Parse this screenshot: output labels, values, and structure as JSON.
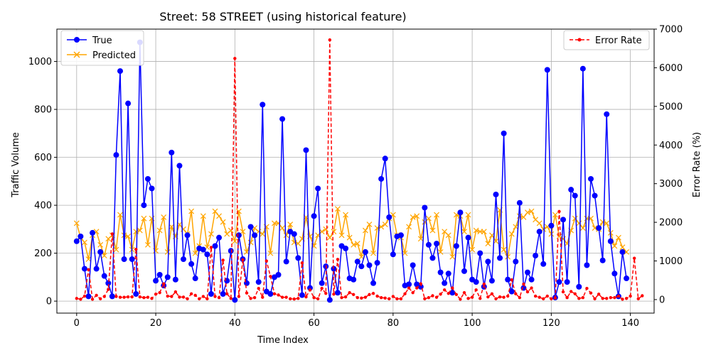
{
  "chart_data": {
    "type": "line",
    "title": "Street: 58 STREET (using historical feature)",
    "xlabel": "Time Index",
    "ylabel": "Traffic Volume",
    "y2label": "Error Rate (%)",
    "xlim": [
      -5,
      146
    ],
    "ylim": [
      -50,
      1135
    ],
    "y2lim": [
      -350,
      7000
    ],
    "xticks": [
      0,
      20,
      40,
      60,
      80,
      100,
      120,
      140
    ],
    "yticks": [
      0,
      200,
      400,
      600,
      800,
      1000
    ],
    "y2ticks": [
      0,
      1000,
      2000,
      3000,
      4000,
      5000,
      6000,
      7000
    ],
    "grid": true,
    "legend_left": "upper-left",
    "legend_right": "upper-right",
    "colors": {
      "true": "#0000ff",
      "predicted": "#ffa500",
      "error": "#ff0000"
    },
    "series": [
      {
        "name": "True",
        "axis": "left",
        "values": [
          250,
          270,
          135,
          20,
          285,
          135,
          205,
          105,
          75,
          20,
          610,
          960,
          175,
          825,
          175,
          30,
          1080,
          400,
          510,
          470,
          85,
          110,
          65,
          100,
          620,
          90,
          565,
          175,
          275,
          155,
          95,
          220,
          215,
          195,
          30,
          230,
          265,
          30,
          85,
          210,
          5,
          275,
          175,
          75,
          310,
          275,
          80,
          820,
          40,
          30,
          100,
          110,
          760,
          165,
          290,
          280,
          180,
          25,
          630,
          55,
          355,
          470,
          75,
          145,
          5,
          135,
          35,
          230,
          220,
          95,
          90,
          165,
          145,
          205,
          150,
          75,
          160,
          510,
          595,
          350,
          195,
          270,
          275,
          65,
          70,
          150,
          70,
          60,
          390,
          235,
          180,
          240,
          120,
          75,
          115,
          35,
          230,
          370,
          125,
          265,
          90,
          80,
          200,
          60,
          165,
          85,
          445,
          180,
          700,
          90,
          40,
          165,
          410,
          55,
          120,
          90,
          190,
          290,
          155,
          965,
          315,
          15,
          80,
          340,
          80,
          465,
          440,
          60,
          970,
          150,
          510,
          440,
          305,
          170,
          780,
          250,
          115,
          20,
          205,
          95
        ]
      },
      {
        "name": "Predicted",
        "axis": "left",
        "values": [
          325,
          265,
          245,
          175,
          275,
          290,
          235,
          190,
          260,
          275,
          215,
          360,
          275,
          270,
          215,
          290,
          295,
          345,
          235,
          345,
          210,
          295,
          350,
          205,
          310,
          270,
          320,
          300,
          280,
          375,
          200,
          230,
          355,
          225,
          280,
          375,
          355,
          330,
          280,
          295,
          250,
          375,
          290,
          205,
          245,
          305,
          290,
          280,
          310,
          200,
          325,
          325,
          305,
          275,
          320,
          245,
          240,
          260,
          350,
          270,
          230,
          275,
          290,
          300,
          265,
          290,
          385,
          275,
          360,
          265,
          235,
          240,
          185,
          295,
          320,
          200,
          305,
          310,
          320,
          345,
          360,
          275,
          265,
          200,
          310,
          350,
          355,
          260,
          330,
          345,
          295,
          360,
          205,
          290,
          275,
          185,
          360,
          355,
          290,
          360,
          215,
          295,
          290,
          290,
          240,
          275,
          250,
          380,
          215,
          185,
          280,
          310,
          355,
          350,
          370,
          375,
          340,
          325,
          300,
          310,
          280,
          360,
          270,
          260,
          240,
          295,
          345,
          325,
          305,
          345,
          345,
          305,
          300,
          330,
          325,
          285,
          230,
          265,
          225,
          205
        ]
      },
      {
        "name": "Error Rate",
        "axis": "right",
        "values": [
          30,
          10,
          90,
          775,
          10,
          110,
          20,
          80,
          265,
          1700,
          80,
          60,
          60,
          70,
          70,
          1300,
          70,
          50,
          60,
          30,
          140,
          180,
          410,
          90,
          80,
          200,
          65,
          65,
          20,
          150,
          110,
          20,
          80,
          20,
          1350,
          80,
          50,
          1020,
          150,
          30,
          6240,
          80,
          1030,
          170,
          30,
          50,
          290,
          60,
          1000,
          600,
          150,
          120,
          60,
          60,
          20,
          15,
          30,
          950,
          70,
          250,
          50,
          20,
          290,
          160,
          6720,
          140,
          1040,
          50,
          70,
          180,
          130,
          50,
          40,
          60,
          130,
          160,
          90,
          50,
          40,
          20,
          80,
          20,
          20,
          150,
          300,
          180,
          300,
          410,
          20,
          50,
          100,
          60,
          140,
          250,
          160,
          300,
          130,
          10,
          180,
          30,
          60,
          250,
          30,
          400,
          70,
          150,
          20,
          70,
          60,
          90,
          510,
          150,
          50,
          400,
          200,
          300,
          90,
          60,
          20,
          90,
          20,
          40,
          2280,
          200,
          50,
          210,
          150,
          30,
          50,
          290,
          170,
          20,
          140,
          30,
          30,
          50,
          50,
          90,
          10,
          30,
          90,
          1070,
          20,
          100
        ]
      }
    ]
  }
}
